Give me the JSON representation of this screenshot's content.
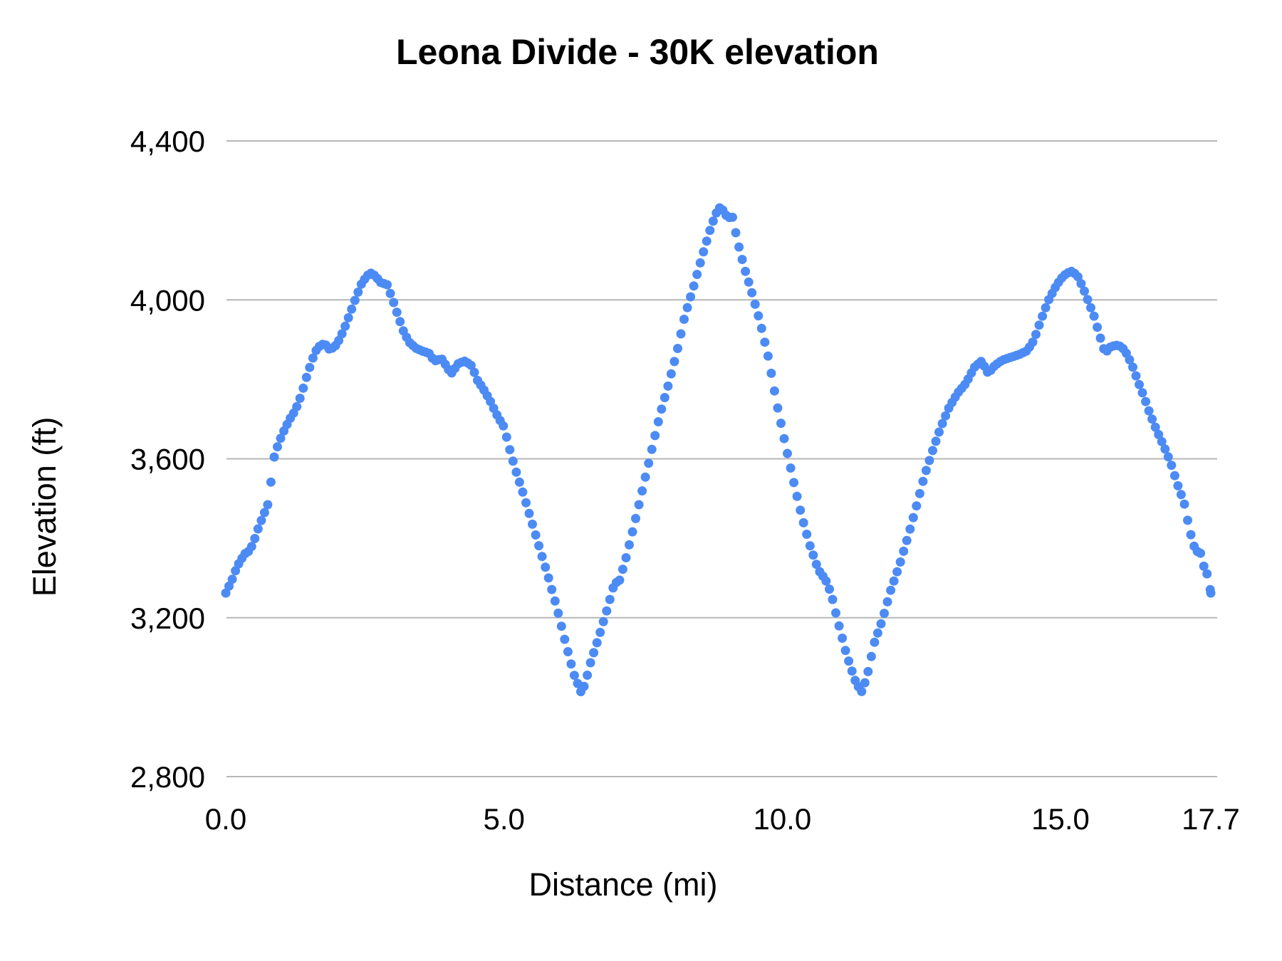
{
  "chart_data": {
    "type": "scatter",
    "title": "Leona Divide - 30K elevation",
    "xlabel": "Distance (mi)",
    "ylabel": "Elevation (ft)",
    "xlim": [
      0.0,
      17.7
    ],
    "ylim": [
      2800,
      4400
    ],
    "grid": "horizontal-only",
    "legend": "none",
    "point_color": "#4c8bf4",
    "grid_color": "#b7b7b7",
    "text_color": "#000000",
    "background_color": "#ffffff",
    "x_ticks": [
      {
        "value": 0.0,
        "label": "0.0"
      },
      {
        "value": 5.0,
        "label": "5.0"
      },
      {
        "value": 10.0,
        "label": "10.0"
      },
      {
        "value": 15.0,
        "label": "15.0"
      },
      {
        "value": 17.7,
        "label": "17.7"
      }
    ],
    "y_ticks": [
      {
        "value": 2800,
        "label": "2,800"
      },
      {
        "value": 3200,
        "label": "3,200"
      },
      {
        "value": 3600,
        "label": "3,600"
      },
      {
        "value": 4000,
        "label": "4,000"
      },
      {
        "value": 4400,
        "label": "4,400"
      }
    ],
    "series": [
      {
        "name": "Elevation",
        "points": [
          [
            0.0,
            3262
          ],
          [
            0.06,
            3280
          ],
          [
            0.12,
            3298
          ],
          [
            0.2,
            3328
          ],
          [
            0.3,
            3352
          ],
          [
            0.38,
            3368
          ],
          [
            0.42,
            3366
          ],
          [
            0.5,
            3390
          ],
          [
            0.6,
            3432
          ],
          [
            0.7,
            3466
          ],
          [
            0.77,
            3490
          ],
          [
            0.86,
            3600
          ],
          [
            0.95,
            3640
          ],
          [
            1.05,
            3672
          ],
          [
            1.15,
            3700
          ],
          [
            1.25,
            3722
          ],
          [
            1.35,
            3758
          ],
          [
            1.45,
            3805
          ],
          [
            1.55,
            3848
          ],
          [
            1.62,
            3872
          ],
          [
            1.7,
            3886
          ],
          [
            1.78,
            3890
          ],
          [
            1.85,
            3876
          ],
          [
            1.95,
            3880
          ],
          [
            2.05,
            3902
          ],
          [
            2.15,
            3935
          ],
          [
            2.25,
            3972
          ],
          [
            2.35,
            4010
          ],
          [
            2.45,
            4044
          ],
          [
            2.55,
            4062
          ],
          [
            2.62,
            4068
          ],
          [
            2.7,
            4058
          ],
          [
            2.78,
            4044
          ],
          [
            2.9,
            4038
          ],
          [
            3.0,
            4000
          ],
          [
            3.1,
            3958
          ],
          [
            3.2,
            3918
          ],
          [
            3.3,
            3893
          ],
          [
            3.42,
            3878
          ],
          [
            3.55,
            3870
          ],
          [
            3.65,
            3866
          ],
          [
            3.75,
            3846
          ],
          [
            3.88,
            3852
          ],
          [
            4.05,
            3814
          ],
          [
            4.18,
            3840
          ],
          [
            4.3,
            3846
          ],
          [
            4.42,
            3834
          ],
          [
            4.52,
            3798
          ],
          [
            4.62,
            3778
          ],
          [
            4.75,
            3746
          ],
          [
            4.88,
            3708
          ],
          [
            5.0,
            3680
          ],
          [
            5.1,
            3625
          ],
          [
            5.2,
            3575
          ],
          [
            5.35,
            3510
          ],
          [
            5.5,
            3440
          ],
          [
            5.65,
            3370
          ],
          [
            5.8,
            3300
          ],
          [
            5.95,
            3225
          ],
          [
            6.1,
            3140
          ],
          [
            6.25,
            3060
          ],
          [
            6.38,
            3014
          ],
          [
            6.45,
            3030
          ],
          [
            6.55,
            3085
          ],
          [
            6.7,
            3150
          ],
          [
            6.85,
            3220
          ],
          [
            6.98,
            3285
          ],
          [
            7.08,
            3295
          ],
          [
            7.2,
            3355
          ],
          [
            7.35,
            3440
          ],
          [
            7.5,
            3530
          ],
          [
            7.65,
            3620
          ],
          [
            7.8,
            3710
          ],
          [
            7.95,
            3785
          ],
          [
            8.1,
            3865
          ],
          [
            8.25,
            3960
          ],
          [
            8.4,
            4030
          ],
          [
            8.55,
            4105
          ],
          [
            8.7,
            4175
          ],
          [
            8.8,
            4215
          ],
          [
            8.87,
            4232
          ],
          [
            8.95,
            4224
          ],
          [
            9.02,
            4205
          ],
          [
            9.1,
            4212
          ],
          [
            9.2,
            4145
          ],
          [
            9.32,
            4080
          ],
          [
            9.45,
            4020
          ],
          [
            9.6,
            3945
          ],
          [
            9.75,
            3855
          ],
          [
            9.9,
            3740
          ],
          [
            10.05,
            3640
          ],
          [
            10.2,
            3545
          ],
          [
            10.35,
            3455
          ],
          [
            10.5,
            3380
          ],
          [
            10.65,
            3320
          ],
          [
            10.78,
            3295
          ],
          [
            10.88,
            3260
          ],
          [
            11.0,
            3190
          ],
          [
            11.15,
            3110
          ],
          [
            11.3,
            3045
          ],
          [
            11.42,
            3012
          ],
          [
            11.52,
            3050
          ],
          [
            11.65,
            3135
          ],
          [
            11.8,
            3195
          ],
          [
            11.95,
            3270
          ],
          [
            12.1,
            3330
          ],
          [
            12.25,
            3400
          ],
          [
            12.4,
            3475
          ],
          [
            12.55,
            3555
          ],
          [
            12.7,
            3620
          ],
          [
            12.85,
            3680
          ],
          [
            13.0,
            3730
          ],
          [
            13.15,
            3765
          ],
          [
            13.3,
            3790
          ],
          [
            13.45,
            3830
          ],
          [
            13.58,
            3846
          ],
          [
            13.7,
            3815
          ],
          [
            13.82,
            3835
          ],
          [
            13.95,
            3848
          ],
          [
            14.1,
            3855
          ],
          [
            14.25,
            3862
          ],
          [
            14.4,
            3872
          ],
          [
            14.52,
            3898
          ],
          [
            14.65,
            3950
          ],
          [
            14.78,
            3998
          ],
          [
            14.9,
            4030
          ],
          [
            15.0,
            4052
          ],
          [
            15.1,
            4066
          ],
          [
            15.2,
            4072
          ],
          [
            15.3,
            4062
          ],
          [
            15.4,
            4032
          ],
          [
            15.5,
            3996
          ],
          [
            15.6,
            3960
          ],
          [
            15.7,
            3912
          ],
          [
            15.8,
            3866
          ],
          [
            15.9,
            3882
          ],
          [
            16.0,
            3886
          ],
          [
            16.1,
            3882
          ],
          [
            16.2,
            3862
          ],
          [
            16.3,
            3830
          ],
          [
            16.4,
            3792
          ],
          [
            16.5,
            3756
          ],
          [
            16.6,
            3716
          ],
          [
            16.72,
            3674
          ],
          [
            16.85,
            3634
          ],
          [
            16.98,
            3590
          ],
          [
            17.1,
            3536
          ],
          [
            17.22,
            3490
          ],
          [
            17.32,
            3420
          ],
          [
            17.42,
            3370
          ],
          [
            17.52,
            3362
          ],
          [
            17.58,
            3326
          ],
          [
            17.65,
            3305
          ],
          [
            17.7,
            3262
          ]
        ]
      }
    ]
  }
}
